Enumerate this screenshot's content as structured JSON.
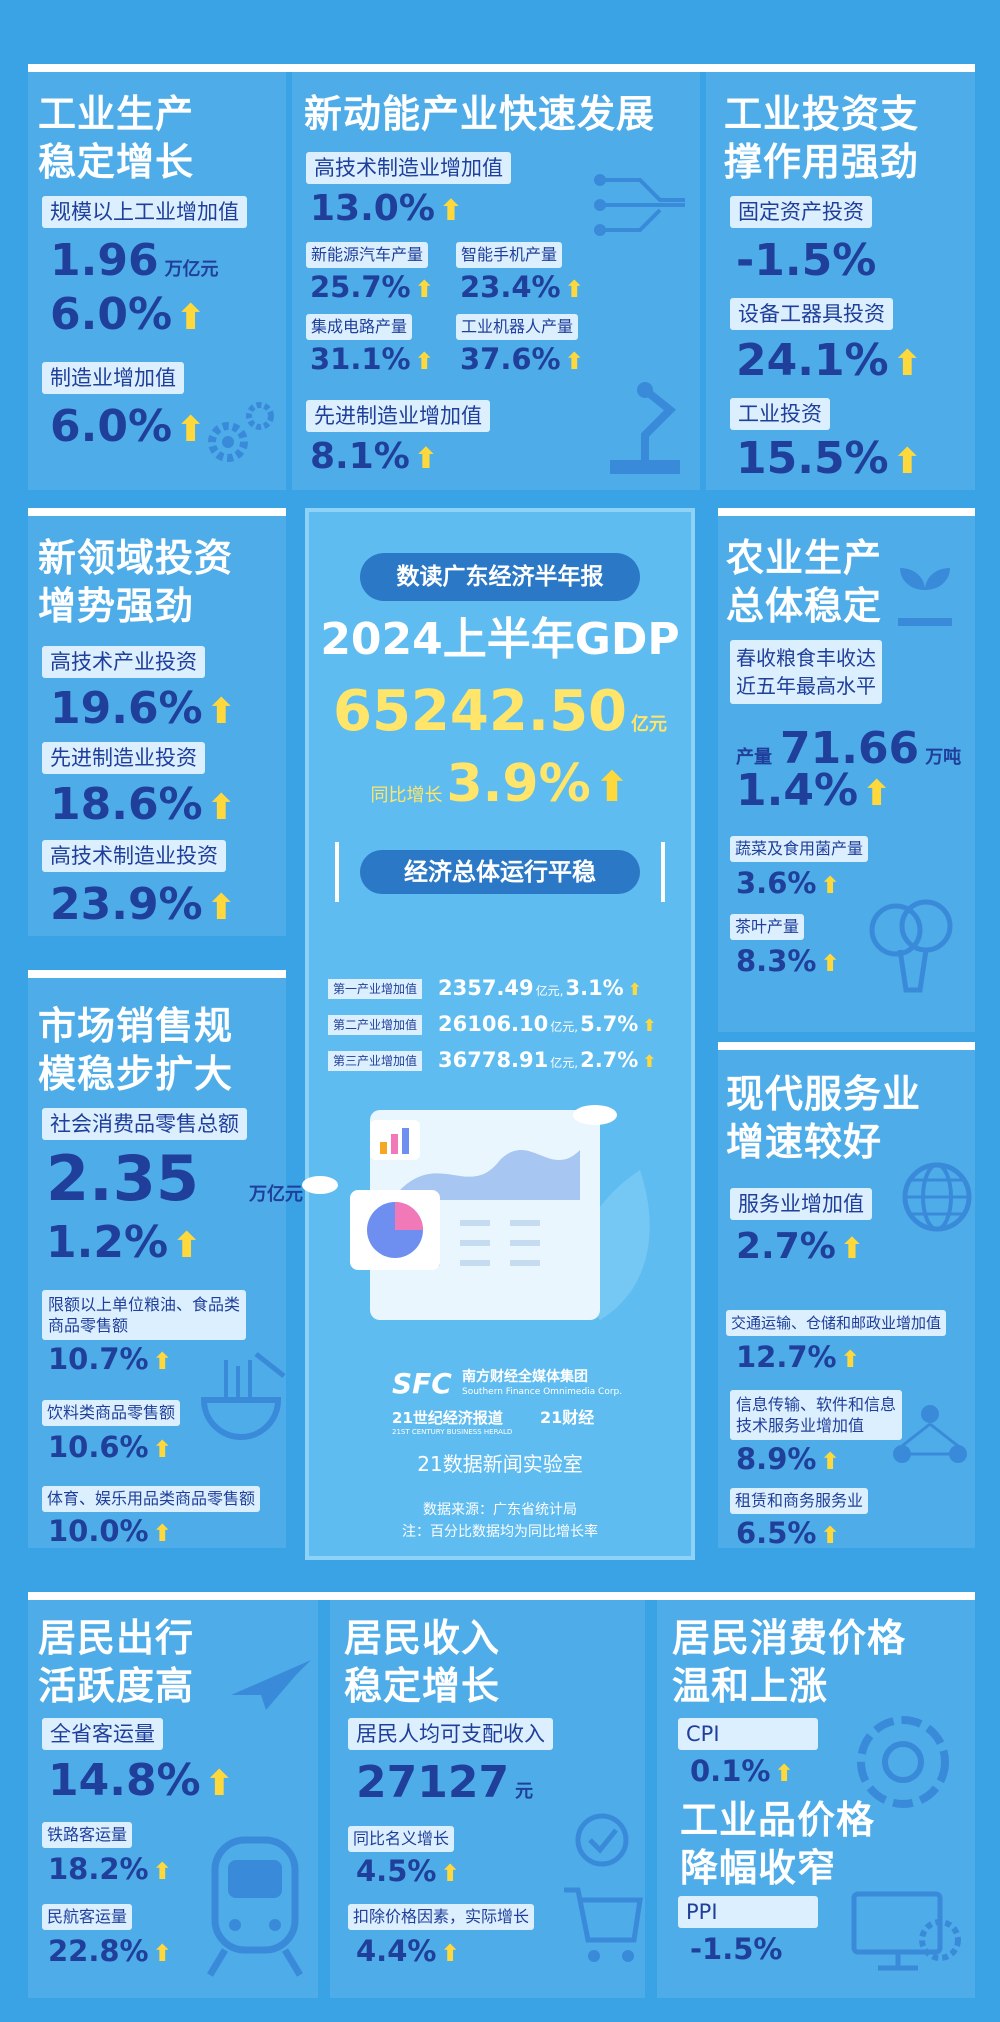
{
  "industry": {
    "title": "工业生产\n稳定增长",
    "label1": "规模以上工业增加值",
    "value1": "1.96",
    "unit1": "万亿元",
    "value2": "6.0%",
    "label2": "制造业增加值",
    "value3": "6.0%"
  },
  "new_energy": {
    "title": "新动能产业快速发展",
    "label1": "高技术制造业增加值",
    "value1": "13.0%",
    "label2": "新能源汽车产量",
    "value2": "25.7%",
    "label3": "智能手机产量",
    "value3": "23.4%",
    "label4": "集成电路产量",
    "value4": "31.1%",
    "label5": "工业机器人产量",
    "value5": "37.6%",
    "label6": "先进制造业增加值",
    "value6": "8.1%"
  },
  "ind_invest": {
    "title": "工业投资支\n撑作用强劲",
    "label1": "固定资产投资",
    "value1": "-1.5%",
    "label2": "设备工器具投资",
    "value2": "24.1%",
    "label3": "工业投资",
    "value3": "15.5%"
  },
  "new_field": {
    "title": "新领域投资\n增势强劲",
    "label1": "高技术产业投资",
    "value1": "19.6%",
    "label2": "先进制造业投资",
    "value2": "18.6%",
    "label3": "高技术制造业投资",
    "value3": "23.9%"
  },
  "agri": {
    "title": "农业生产\n总体稳定",
    "label1": "春收粮食丰收达\n近五年最高水平",
    "prefix": "产量",
    "value1": "71.66",
    "unit1": "万吨",
    "value2": "1.4%",
    "label2": "蔬菜及食用菌产量",
    "value3": "3.6%",
    "label3": "茶叶产量",
    "value4": "8.3%"
  },
  "center": {
    "badge": "数读广东经济半年报",
    "gdp_title": "2024上半年GDP",
    "gdp_value": "65242.50",
    "gdp_unit": "亿元",
    "growth_label": "同比增长",
    "growth_value": "3.9%",
    "stable": "经济总体运行平稳",
    "sectors": [
      {
        "label": "第一产业增加值",
        "value": "2357.49",
        "unit": "亿元,",
        "rate": "3.1%"
      },
      {
        "label": "第二产业增加值",
        "value": "26106.10",
        "unit": "亿元,",
        "rate": "5.7%"
      },
      {
        "label": "第三产业增加值",
        "value": "36778.91",
        "unit": "亿元,",
        "rate": "2.7%"
      }
    ],
    "sfc": "SFC",
    "group_name": "南方财经全媒体集团",
    "group_en": "Southern Finance Omnimedia Corp.",
    "paper_name": "21世纪经济报道",
    "paper_en": "21ST CENTURY BUSINESS HERALD",
    "caijing": "21财经",
    "lab": "21数据新闻实验室",
    "source": "数据来源：广东省统计局",
    "note": "注：百分比数据均为同比增长率"
  },
  "market": {
    "title": "市场销售规\n模稳步扩大",
    "label1": "社会消费品零售总额",
    "value1": "2.35",
    "unit1": "万亿元",
    "value2": "1.2%",
    "label2": "限额以上单位粮油、食品类\n商品零售额",
    "value3": "10.7%",
    "label3": "饮料类商品零售额",
    "value4": "10.6%",
    "label4": "体育、娱乐用品类商品零售额",
    "value5": "10.0%"
  },
  "service": {
    "title": "现代服务业\n增速较好",
    "label1": "服务业增加值",
    "value1": "2.7%",
    "label2": "交通运输、仓储和邮政业增加值",
    "value2": "12.7%",
    "label3": "信息传输、软件和信息\n技术服务业增加值",
    "value3": "8.9%",
    "label4": "租赁和商务服务业",
    "value4": "6.5%"
  },
  "travel": {
    "title": "居民出行\n活跃度高",
    "label1": "全省客运量",
    "value1": "14.8%",
    "label2": "铁路客运量",
    "value2": "18.2%",
    "label3": "民航客运量",
    "value3": "22.8%"
  },
  "income": {
    "title": "居民收入\n稳定增长",
    "label1": "居民人均可支配收入",
    "value1": "27127",
    "unit1": "元",
    "label2": "同比名义增长",
    "value2": "4.5%",
    "label3": "扣除价格因素，实际增长",
    "value3": "4.4%"
  },
  "price": {
    "title": "居民消费价格\n温和上涨",
    "label1": "CPI",
    "value1": "0.1%",
    "title2": "工业品价格\n降幅收窄",
    "label2": "PPI",
    "value2": "-1.5%"
  },
  "colors": {
    "background": "#3aa3e6",
    "number": "#1f3f9a",
    "arrow": "#ffd93b",
    "label_bg": "#dcefff",
    "gdp": "#ffe66a"
  }
}
